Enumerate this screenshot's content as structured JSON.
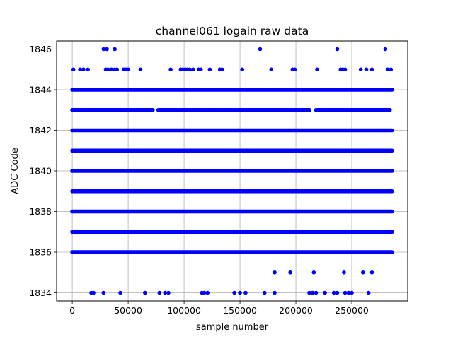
{
  "chart_data": {
    "type": "scatter",
    "title": "channel061 logain raw data",
    "xlabel": "sample number",
    "ylabel": "ADC Code",
    "xlim": [
      -14000,
      300000
    ],
    "ylim": [
      1833.6,
      1846.4
    ],
    "x_ticks": [
      0,
      50000,
      100000,
      150000,
      200000,
      250000
    ],
    "y_ticks": [
      1834,
      1836,
      1838,
      1840,
      1842,
      1844,
      1846
    ],
    "x_tick_labels": [
      "0",
      "50000",
      "100000",
      "150000",
      "200000",
      "250000"
    ],
    "y_tick_labels": [
      "1834",
      "1836",
      "1838",
      "1840",
      "1842",
      "1844",
      "1846"
    ],
    "grid": true,
    "color": "#0000ff",
    "series": [
      {
        "values_dense": {
          "levels": [
            1836,
            1837,
            1838,
            1839,
            1840,
            1841,
            1842,
            1844
          ],
          "x_range": [
            0,
            286000
          ]
        },
        "values_1843": {
          "y": 1843,
          "x": [
            0,
            3000,
            6000,
            9000,
            12000,
            15000,
            18000,
            21000,
            24000,
            27000,
            30000,
            33000,
            36000,
            39000,
            42000,
            45000,
            48000,
            51000,
            54000,
            57000,
            60000,
            63000,
            66000,
            69000,
            72000,
            77000,
            80000,
            83000,
            86000,
            89000,
            92000,
            95000,
            98000,
            101000,
            104000,
            107000,
            110000,
            113000,
            116000,
            119000,
            122000,
            125000,
            128000,
            131000,
            134000,
            137000,
            140000,
            143000,
            146000,
            149000,
            152000,
            155000,
            158000,
            161000,
            164000,
            167000,
            170000,
            173000,
            176000,
            179000,
            182000,
            185000,
            188000,
            191000,
            194000,
            197000,
            200000,
            203000,
            206000,
            209000,
            212000,
            218000,
            221000,
            224000,
            227000,
            230000,
            233000,
            236000,
            239000,
            242000,
            245000,
            248000,
            251000,
            254000,
            257000,
            260000,
            263000,
            266000,
            269000,
            272000,
            275000,
            278000,
            281000,
            284000
          ]
        },
        "values_1845": {
          "y": 1845,
          "x": [
            1000,
            7000,
            10000,
            14000,
            30000,
            32000,
            35000,
            38000,
            40000,
            46000,
            48000,
            50000,
            61000,
            88000,
            97000,
            99000,
            101000,
            103000,
            105000,
            108000,
            113000,
            115000,
            123000,
            132000,
            134000,
            152000,
            178000,
            197000,
            199000,
            219000,
            240000,
            242000,
            244000,
            258000,
            263000,
            268000,
            282000,
            285000
          ]
        },
        "values_1846": {
          "y": 1846,
          "x": [
            28000,
            31000,
            38000,
            168000,
            237000,
            280000
          ]
        },
        "values_1835": {
          "y": 1835,
          "x": [
            181000,
            195000,
            216000,
            243000,
            260000,
            268000
          ]
        },
        "values_1834": {
          "y": 1834,
          "x": [
            17000,
            19000,
            28000,
            43000,
            65000,
            78000,
            83000,
            86000,
            116000,
            118000,
            121000,
            145000,
            150000,
            155000,
            172000,
            181000,
            212000,
            215000,
            218000,
            226000,
            234000,
            237000,
            244000,
            247000,
            250000,
            265000
          ]
        }
      }
    ]
  }
}
